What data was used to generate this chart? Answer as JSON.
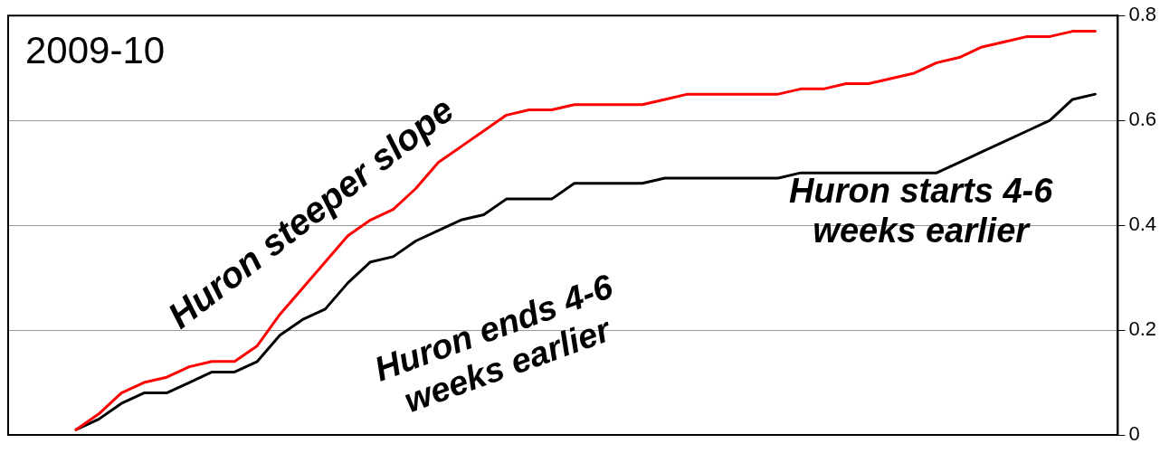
{
  "chart_data": {
    "type": "line",
    "annotations": [
      "2009-10",
      "Huron steeper slope",
      "Huron ends 4-6\nweeks earlier",
      "Huron starts 4-6\nweeks earlier"
    ],
    "categories": [
      null,
      null,
      null,
      null,
      null,
      null,
      null,
      null,
      null,
      null,
      null,
      null,
      null,
      null,
      null,
      null,
      null,
      null,
      null,
      null,
      null,
      null,
      null,
      null,
      null,
      null,
      null,
      null,
      null,
      null,
      null,
      null,
      null,
      null,
      null,
      null,
      null,
      null,
      null,
      null,
      null,
      null,
      null,
      null,
      null,
      null,
      null,
      null,
      null,
      null
    ],
    "ylim": [
      0,
      0.8
    ],
    "yticks": [
      0,
      0.2,
      0.4,
      0.6,
      0.8
    ],
    "tick_labels": "y",
    "grid": "y",
    "marker": "none",
    "line_style": "solid",
    "series": [
      {
        "color": "#ff0000",
        "values": [
          null,
          null,
          null,
          0.01,
          0.04,
          0.08,
          0.1,
          0.11,
          0.13,
          0.14,
          0.14,
          0.17,
          0.23,
          0.28,
          0.33,
          0.38,
          0.41,
          0.43,
          0.47,
          0.52,
          0.55,
          0.58,
          0.61,
          0.62,
          0.62,
          0.63,
          0.63,
          0.63,
          0.63,
          0.64,
          0.65,
          0.65,
          0.65,
          0.65,
          0.65,
          0.66,
          0.66,
          0.67,
          0.67,
          0.68,
          0.69,
          0.71,
          0.72,
          0.74,
          0.75,
          0.76,
          0.76,
          0.77,
          0.77,
          null
        ]
      },
      {
        "color": "#000000",
        "values": [
          null,
          null,
          null,
          0.01,
          0.03,
          0.06,
          0.08,
          0.08,
          0.1,
          0.12,
          0.12,
          0.14,
          0.19,
          0.22,
          0.24,
          0.29,
          0.33,
          0.34,
          0.37,
          0.39,
          0.41,
          0.42,
          0.45,
          0.45,
          0.45,
          0.48,
          0.48,
          0.48,
          0.48,
          0.49,
          0.49,
          0.49,
          0.49,
          0.49,
          0.49,
          0.5,
          0.5,
          0.5,
          0.5,
          0.5,
          0.5,
          0.5,
          0.52,
          0.54,
          0.56,
          0.58,
          0.6,
          0.64,
          0.65,
          null
        ]
      }
    ]
  }
}
